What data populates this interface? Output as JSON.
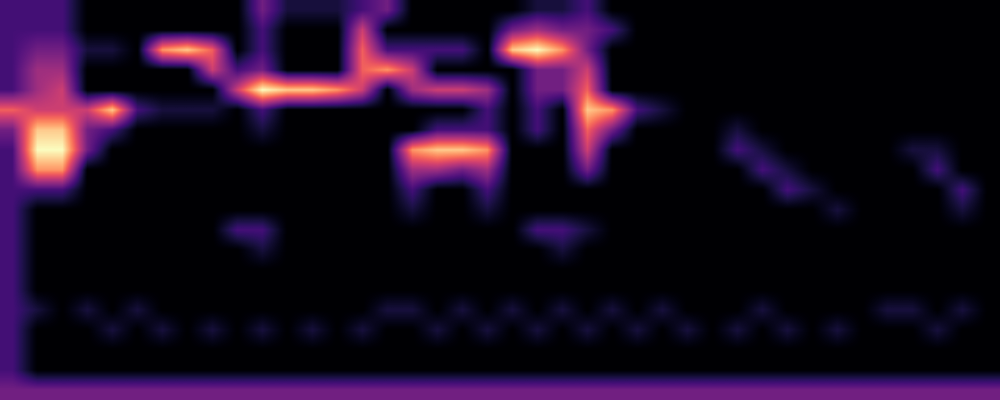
{
  "chart_data": {
    "type": "heatmap",
    "color": "magma",
    "tick_labels": false,
    "cells": [
      [
        2,
        2,
        2,
        0,
        0,
        0,
        0,
        0,
        0,
        0,
        3,
        1,
        1,
        1,
        2,
        3,
        0,
        0,
        0,
        0,
        0,
        1,
        1,
        2,
        0,
        0,
        0,
        0,
        0,
        0,
        0,
        0,
        0,
        0,
        0,
        0,
        0,
        0,
        0,
        0
      ],
      [
        2,
        2,
        2,
        0,
        0,
        0,
        0,
        0,
        0,
        0,
        2,
        0,
        0,
        0,
        5,
        0,
        0,
        0,
        0,
        0,
        3,
        4,
        3,
        3,
        2,
        0,
        0,
        0,
        0,
        0,
        0,
        0,
        0,
        0,
        0,
        0,
        0,
        0,
        0,
        0
      ],
      [
        2,
        3,
        3,
        1,
        1,
        0,
        7,
        8,
        6,
        0,
        2,
        0,
        0,
        0,
        6,
        2,
        2,
        2,
        2,
        0,
        8,
        9,
        7,
        3,
        0,
        0,
        0,
        0,
        0,
        0,
        0,
        0,
        0,
        0,
        0,
        0,
        0,
        0,
        0,
        0
      ],
      [
        2,
        4,
        4,
        0,
        0,
        0,
        0,
        0,
        5,
        2,
        3,
        0,
        0,
        0,
        6,
        7,
        5,
        0,
        0,
        0,
        0,
        3,
        3,
        5,
        0,
        0,
        0,
        0,
        0,
        0,
        0,
        0,
        0,
        0,
        0,
        0,
        0,
        0,
        0,
        0
      ],
      [
        2,
        4,
        5,
        0,
        0,
        0,
        0,
        0,
        0,
        5,
        9,
        8,
        8,
        7,
        5,
        0,
        4,
        5,
        5,
        4,
        0,
        3,
        3,
        6,
        0,
        0,
        0,
        0,
        0,
        0,
        0,
        0,
        0,
        0,
        0,
        0,
        0,
        0,
        0,
        0
      ],
      [
        6,
        5,
        5,
        5,
        8,
        2,
        1,
        1,
        1,
        0,
        2,
        0,
        0,
        0,
        0,
        0,
        0,
        0,
        0,
        2,
        0,
        2,
        0,
        8,
        7,
        2,
        1,
        0,
        0,
        0,
        0,
        0,
        0,
        0,
        0,
        0,
        0,
        0,
        0,
        0
      ],
      [
        3,
        8,
        8,
        3,
        2,
        0,
        0,
        0,
        0,
        0,
        1,
        0,
        0,
        0,
        0,
        0,
        0,
        2,
        2,
        2,
        0,
        2,
        0,
        6,
        3,
        0,
        0,
        0,
        0,
        1,
        0,
        0,
        0,
        0,
        0,
        0,
        0,
        0,
        0,
        0
      ],
      [
        2,
        9,
        9,
        3,
        0,
        0,
        0,
        0,
        0,
        0,
        0,
        0,
        0,
        0,
        0,
        0,
        7,
        8,
        8,
        7,
        0,
        0,
        0,
        5,
        0,
        0,
        0,
        0,
        0,
        2,
        1,
        0,
        0,
        0,
        0,
        0,
        1,
        1,
        0,
        0
      ],
      [
        2,
        7,
        7,
        0,
        0,
        0,
        0,
        0,
        0,
        0,
        0,
        0,
        0,
        0,
        0,
        0,
        4,
        4,
        3,
        4,
        0,
        0,
        0,
        3,
        0,
        0,
        0,
        0,
        0,
        0,
        2,
        1,
        0,
        0,
        0,
        0,
        0,
        2,
        0,
        0
      ],
      [
        2,
        2,
        2,
        0,
        0,
        0,
        0,
        0,
        0,
        0,
        0,
        0,
        0,
        0,
        0,
        0,
        2,
        0,
        0,
        2,
        0,
        0,
        0,
        0,
        0,
        0,
        0,
        0,
        0,
        0,
        0,
        2,
        1,
        0,
        0,
        0,
        0,
        0,
        2,
        0
      ],
      [
        2,
        0,
        0,
        0,
        0,
        0,
        0,
        0,
        0,
        0,
        0,
        0,
        0,
        0,
        0,
        0,
        1,
        0,
        0,
        1,
        0,
        0,
        0,
        0,
        0,
        0,
        0,
        0,
        0,
        0,
        0,
        0,
        0,
        1,
        0,
        0,
        0,
        0,
        1,
        0
      ],
      [
        2,
        0,
        0,
        0,
        0,
        0,
        0,
        0,
        0,
        2,
        2,
        0,
        0,
        0,
        0,
        0,
        0,
        0,
        0,
        0,
        0,
        2,
        2,
        1,
        0,
        0,
        0,
        0,
        0,
        0,
        0,
        0,
        0,
        0,
        0,
        0,
        0,
        0,
        0,
        0
      ],
      [
        2,
        0,
        0,
        0,
        0,
        0,
        0,
        0,
        0,
        0,
        1,
        0,
        0,
        0,
        0,
        0,
        0,
        0,
        0,
        0,
        0,
        0,
        1,
        0,
        0,
        0,
        0,
        0,
        0,
        0,
        0,
        0,
        0,
        0,
        0,
        0,
        0,
        0,
        0,
        0
      ],
      [
        2,
        0,
        0,
        0,
        0,
        0,
        0,
        0,
        0,
        0,
        0,
        0,
        0,
        0,
        0,
        0,
        0,
        0,
        0,
        0,
        0,
        0,
        0,
        0,
        0,
        0,
        0,
        0,
        0,
        0,
        0,
        0,
        0,
        0,
        0,
        0,
        0,
        0,
        0,
        0
      ],
      [
        2,
        0,
        0,
        0,
        0,
        0,
        0,
        0,
        0,
        0,
        0,
        0,
        0,
        0,
        0,
        0,
        0,
        0,
        0,
        0,
        0,
        0,
        0,
        0,
        0,
        0,
        0,
        0,
        0,
        0,
        0,
        0,
        0,
        0,
        0,
        0,
        0,
        0,
        0,
        0
      ],
      [
        2,
        1,
        0,
        1,
        0,
        1,
        0,
        0,
        0,
        0,
        0,
        0,
        0,
        0,
        0,
        1,
        1,
        0,
        1,
        0,
        1,
        0,
        1,
        0,
        1,
        0,
        1,
        0,
        0,
        0,
        1,
        0,
        0,
        0,
        0,
        1,
        1,
        0,
        1,
        0
      ],
      [
        2,
        0,
        0,
        0,
        1,
        0,
        1,
        0,
        1,
        0,
        1,
        0,
        1,
        0,
        1,
        0,
        0,
        1,
        0,
        1,
        0,
        1,
        0,
        1,
        0,
        1,
        0,
        1,
        0,
        1,
        0,
        1,
        0,
        1,
        0,
        0,
        0,
        1,
        0,
        0
      ],
      [
        2,
        0,
        0,
        0,
        0,
        0,
        0,
        0,
        0,
        0,
        0,
        0,
        0,
        0,
        0,
        0,
        0,
        0,
        0,
        0,
        0,
        0,
        0,
        0,
        0,
        0,
        0,
        0,
        0,
        0,
        0,
        0,
        0,
        0,
        0,
        0,
        0,
        0,
        0,
        0
      ],
      [
        2,
        0,
        0,
        0,
        0,
        0,
        0,
        0,
        0,
        0,
        0,
        0,
        0,
        0,
        0,
        0,
        0,
        0,
        0,
        0,
        0,
        0,
        0,
        0,
        0,
        0,
        0,
        0,
        0,
        0,
        0,
        0,
        0,
        0,
        0,
        0,
        0,
        0,
        0,
        0
      ],
      [
        3,
        3,
        3,
        3,
        3,
        3,
        3,
        3,
        3,
        3,
        3,
        3,
        3,
        3,
        3,
        3,
        3,
        3,
        3,
        3,
        3,
        3,
        3,
        3,
        3,
        3,
        3,
        3,
        3,
        3,
        3,
        3,
        3,
        3,
        3,
        3,
        3,
        3,
        3,
        3
      ]
    ]
  }
}
